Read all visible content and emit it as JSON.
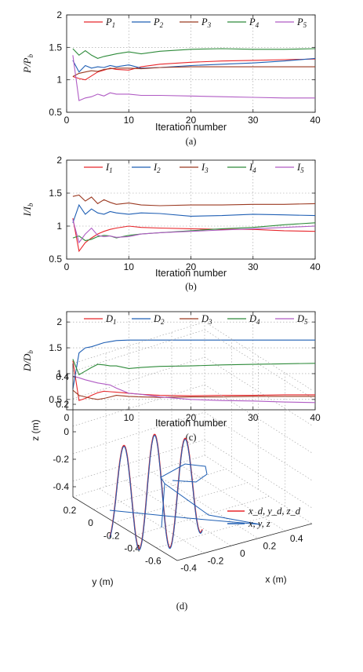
{
  "colors": {
    "red": "#e8262b",
    "blue": "#1f5fb4",
    "brown": "#9b3a22",
    "green": "#2e8b3a",
    "purple": "#b05bc4",
    "axis": "#222222",
    "grid": "#9a9a9a"
  },
  "chart_data": [
    {
      "type": "line",
      "caption": "(a)",
      "xlabel": "Iteration number",
      "ylabel": "P/P_b",
      "xlim": [
        0,
        40
      ],
      "ylim": [
        0.5,
        2
      ],
      "xticks": [
        0,
        10,
        20,
        30,
        40
      ],
      "yticks": [
        0.5,
        1,
        1.5,
        2
      ],
      "ytick_labels": [
        "0.5",
        "1",
        "1.5",
        "2"
      ],
      "grid": true,
      "legend": "top, horizontal",
      "x": [
        1,
        2,
        3,
        4,
        5,
        6,
        7,
        8,
        10,
        12,
        15,
        20,
        25,
        30,
        35,
        40
      ],
      "series": [
        {
          "name": "P",
          "sub": "1",
          "color": "red",
          "values": [
            1.05,
            1.02,
            1.0,
            1.06,
            1.12,
            1.15,
            1.18,
            1.16,
            1.15,
            1.2,
            1.24,
            1.27,
            1.29,
            1.3,
            1.31,
            1.32
          ]
        },
        {
          "name": "P",
          "sub": "2",
          "color": "blue",
          "values": [
            1.3,
            1.12,
            1.22,
            1.18,
            1.2,
            1.19,
            1.22,
            1.2,
            1.23,
            1.18,
            1.19,
            1.22,
            1.24,
            1.26,
            1.29,
            1.33
          ]
        },
        {
          "name": "P",
          "sub": "3",
          "color": "brown",
          "values": [
            1.05,
            1.1,
            1.12,
            1.14,
            1.13,
            1.16,
            1.17,
            1.18,
            1.18,
            1.17,
            1.19,
            1.2,
            1.2,
            1.2,
            1.2,
            1.2
          ]
        },
        {
          "name": "P",
          "sub": "4",
          "color": "green",
          "values": [
            1.48,
            1.38,
            1.45,
            1.38,
            1.33,
            1.36,
            1.38,
            1.4,
            1.43,
            1.4,
            1.44,
            1.47,
            1.48,
            1.47,
            1.47,
            1.48
          ]
        },
        {
          "name": "P",
          "sub": "5",
          "color": "purple",
          "values": [
            1.38,
            0.68,
            0.72,
            0.74,
            0.78,
            0.75,
            0.8,
            0.78,
            0.78,
            0.76,
            0.76,
            0.75,
            0.74,
            0.73,
            0.72,
            0.72
          ]
        }
      ]
    },
    {
      "type": "line",
      "caption": "(b)",
      "xlabel": "Iteration number",
      "ylabel": "I/I_b",
      "xlim": [
        0,
        40
      ],
      "ylim": [
        0.5,
        2
      ],
      "xticks": [
        0,
        10,
        20,
        30,
        40
      ],
      "yticks": [
        0.5,
        1,
        1.5,
        2
      ],
      "ytick_labels": [
        "0.5",
        "1",
        "1.5",
        "2"
      ],
      "grid": true,
      "legend": "top, horizontal",
      "x": [
        1,
        2,
        3,
        4,
        5,
        6,
        7,
        8,
        10,
        12,
        15,
        20,
        25,
        30,
        35,
        40
      ],
      "series": [
        {
          "name": "I",
          "sub": "1",
          "color": "red",
          "values": [
            1.12,
            0.62,
            0.75,
            0.82,
            0.88,
            0.92,
            0.95,
            0.97,
            1.0,
            0.98,
            0.97,
            0.96,
            0.95,
            0.95,
            0.93,
            0.92
          ]
        },
        {
          "name": "I",
          "sub": "2",
          "color": "blue",
          "values": [
            1.05,
            1.32,
            1.18,
            1.26,
            1.2,
            1.18,
            1.22,
            1.2,
            1.18,
            1.2,
            1.19,
            1.15,
            1.16,
            1.18,
            1.17,
            1.16
          ]
        },
        {
          "name": "I",
          "sub": "3",
          "color": "brown",
          "values": [
            1.45,
            1.47,
            1.38,
            1.44,
            1.34,
            1.4,
            1.36,
            1.33,
            1.35,
            1.32,
            1.31,
            1.32,
            1.32,
            1.33,
            1.33,
            1.34
          ]
        },
        {
          "name": "I",
          "sub": "4",
          "color": "green",
          "values": [
            0.82,
            0.85,
            0.78,
            0.8,
            0.84,
            0.86,
            0.85,
            0.82,
            0.86,
            0.88,
            0.9,
            0.93,
            0.96,
            0.98,
            1.02,
            1.05
          ]
        },
        {
          "name": "I",
          "sub": "5",
          "color": "purple",
          "values": [
            1.1,
            0.75,
            0.88,
            0.97,
            0.86,
            0.84,
            0.85,
            0.83,
            0.84,
            0.88,
            0.9,
            0.92,
            0.94,
            0.96,
            0.98,
            1.0
          ]
        }
      ]
    },
    {
      "type": "line",
      "caption": "(c)",
      "xlabel": "Iteration number",
      "ylabel": "D/D_b",
      "xlim": [
        0,
        40
      ],
      "ylim": [
        0.3,
        2.2
      ],
      "xticks": [
        0,
        10,
        20,
        30,
        40
      ],
      "yticks": [
        0.5,
        1,
        1.5,
        2
      ],
      "ytick_labels": [
        "0.5",
        "1",
        "1.5",
        "2"
      ],
      "grid": true,
      "legend": "top, horizontal",
      "x": [
        1,
        2,
        3,
        4,
        5,
        6,
        7,
        8,
        10,
        12,
        15,
        20,
        25,
        30,
        35,
        40
      ],
      "series": [
        {
          "name": "D",
          "sub": "1",
          "color": "red",
          "values": [
            1.25,
            0.48,
            0.52,
            0.58,
            0.63,
            0.66,
            0.65,
            0.64,
            0.62,
            0.6,
            0.58,
            0.57,
            0.58,
            0.58,
            0.59,
            0.59
          ]
        },
        {
          "name": "D",
          "sub": "2",
          "color": "blue",
          "values": [
            0.7,
            1.4,
            1.5,
            1.52,
            1.56,
            1.6,
            1.62,
            1.64,
            1.65,
            1.65,
            1.65,
            1.65,
            1.65,
            1.65,
            1.65,
            1.65
          ]
        },
        {
          "name": "D",
          "sub": "3",
          "color": "brown",
          "values": [
            0.68,
            0.58,
            0.55,
            0.52,
            0.5,
            0.52,
            0.55,
            0.58,
            0.56,
            0.55,
            0.54,
            0.55,
            0.55,
            0.56,
            0.56,
            0.56
          ]
        },
        {
          "name": "D",
          "sub": "4",
          "color": "green",
          "values": [
            1.28,
            0.98,
            1.05,
            1.12,
            1.18,
            1.17,
            1.15,
            1.15,
            1.1,
            1.12,
            1.14,
            1.15,
            1.17,
            1.18,
            1.19,
            1.2
          ]
        },
        {
          "name": "D",
          "sub": "5",
          "color": "purple",
          "values": [
            0.95,
            0.92,
            0.88,
            0.85,
            0.82,
            0.8,
            0.78,
            0.72,
            0.62,
            0.6,
            0.55,
            0.5,
            0.48,
            0.47,
            0.45,
            0.44
          ]
        }
      ]
    },
    {
      "type": "line",
      "subtype": "3d",
      "caption": "(d)",
      "xlabel": "x (m)",
      "ylabel": "y (m)",
      "zlabel": "z (m)",
      "zticks": [
        "0.4",
        "0.2",
        "0",
        "-0.2",
        "-0.4"
      ],
      "yticks": [
        "0.2",
        "0",
        "-0.2",
        "-0.4",
        "-0.6"
      ],
      "xticks": [
        "-0.4",
        "-0.2",
        "0",
        "0.2",
        "0.4"
      ],
      "grid": true,
      "legend": "right",
      "series": [
        {
          "name": "x_d, y_d, z_d",
          "color": "red"
        },
        {
          "name": "x, y, z",
          "color": "blue"
        }
      ]
    }
  ]
}
